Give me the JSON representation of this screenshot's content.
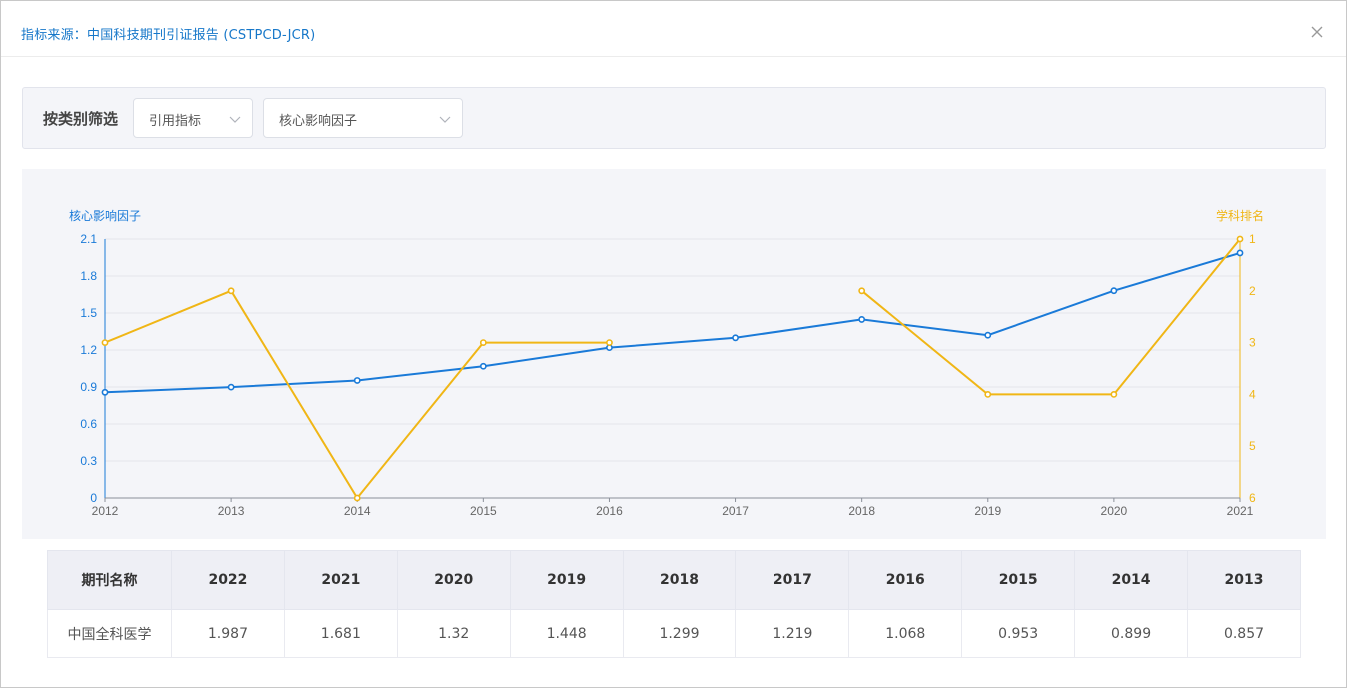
{
  "dialog": {
    "title": "指标来源：中国科技期刊引证报告 (CSTPCD-JCR)"
  },
  "filter": {
    "label": "按类别筛选",
    "category_select": "引用指标",
    "indicator_select": "核心影响因子"
  },
  "icons": {
    "close": "close-icon",
    "dropdown": "chevron-down-icon"
  },
  "colors": {
    "primary_series": "#1a7ad8",
    "secondary_series": "#f0b616",
    "title": "#1677c9"
  },
  "chart_data": {
    "type": "line",
    "x": [
      "2012",
      "2013",
      "2014",
      "2015",
      "2016",
      "2017",
      "2018",
      "2019",
      "2020",
      "2021"
    ],
    "left_axis": {
      "label": "核心影响因子",
      "ticks": [
        "0",
        "0.3",
        "0.6",
        "0.9",
        "1.2",
        "1.5",
        "1.8",
        "2.1"
      ],
      "range": [
        0,
        2.1
      ]
    },
    "right_axis": {
      "label": "学科排名",
      "ticks": [
        "1",
        "2",
        "3",
        "4",
        "5",
        "6"
      ],
      "range": [
        1,
        6
      ],
      "inverted": true
    },
    "series": [
      {
        "axis": "left",
        "color": "#1a7ad8",
        "values": [
          0.857,
          0.899,
          0.953,
          1.068,
          1.219,
          1.299,
          1.448,
          1.32,
          1.681,
          1.987
        ]
      },
      {
        "axis": "right",
        "color": "#f0b616",
        "values": [
          3,
          2,
          6,
          3,
          3,
          null,
          2,
          4,
          4,
          1
        ]
      }
    ],
    "grid": true
  },
  "table": {
    "headers": [
      "期刊名称",
      "2022",
      "2021",
      "2020",
      "2019",
      "2018",
      "2017",
      "2016",
      "2015",
      "2014",
      "2013"
    ],
    "rows": [
      [
        "中国全科医学",
        "1.987",
        "1.681",
        "1.32",
        "1.448",
        "1.299",
        "1.219",
        "1.068",
        "0.953",
        "0.899",
        "0.857"
      ]
    ]
  }
}
